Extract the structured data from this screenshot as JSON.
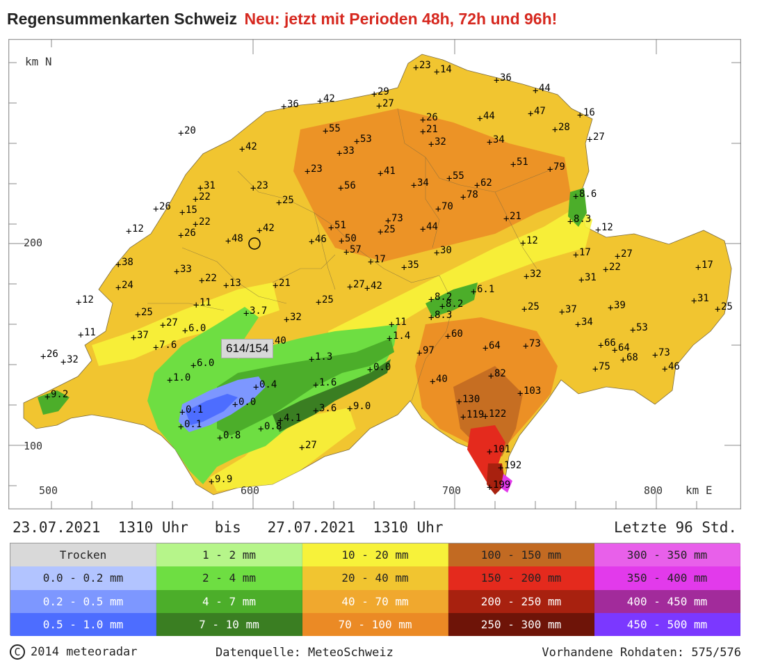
{
  "header": {
    "title": "Regensummenkarten Schweiz",
    "highlight": "Neu: jetzt mit Perioden 48h, 72h und 96h!"
  },
  "map": {
    "axis_y_label": "km N",
    "axis_x_label": "km E",
    "y_ticks": [
      "200",
      "100"
    ],
    "x_ticks": [
      "500",
      "600",
      "700",
      "800"
    ],
    "popup_value": "614/154",
    "stations": [
      {
        "v": "23",
        "x": 600,
        "y": 97
      },
      {
        "v": "14",
        "x": 630,
        "y": 103
      },
      {
        "v": "36",
        "x": 716,
        "y": 115
      },
      {
        "v": "44",
        "x": 772,
        "y": 130
      },
      {
        "v": "42",
        "x": 462,
        "y": 145
      },
      {
        "v": "29",
        "x": 540,
        "y": 135
      },
      {
        "v": "27",
        "x": 547,
        "y": 152
      },
      {
        "v": "36",
        "x": 410,
        "y": 153
      },
      {
        "v": "26",
        "x": 610,
        "y": 172
      },
      {
        "v": "44",
        "x": 692,
        "y": 170
      },
      {
        "v": "47",
        "x": 765,
        "y": 163
      },
      {
        "v": "16",
        "x": 836,
        "y": 165
      },
      {
        "v": "20",
        "x": 262,
        "y": 191
      },
      {
        "v": "55",
        "x": 470,
        "y": 188
      },
      {
        "v": "21",
        "x": 610,
        "y": 189
      },
      {
        "v": "28",
        "x": 800,
        "y": 186
      },
      {
        "v": "53",
        "x": 515,
        "y": 203
      },
      {
        "v": "33",
        "x": 490,
        "y": 220
      },
      {
        "v": "32",
        "x": 622,
        "y": 207
      },
      {
        "v": "34",
        "x": 706,
        "y": 204
      },
      {
        "v": "27",
        "x": 850,
        "y": 200
      },
      {
        "v": "42",
        "x": 350,
        "y": 214
      },
      {
        "v": "51",
        "x": 740,
        "y": 236
      },
      {
        "v": "79",
        "x": 793,
        "y": 243
      },
      {
        "v": "23",
        "x": 444,
        "y": 246
      },
      {
        "v": "41",
        "x": 549,
        "y": 249
      },
      {
        "v": "55",
        "x": 648,
        "y": 256
      },
      {
        "v": "62",
        "x": 688,
        "y": 266
      },
      {
        "v": "31",
        "x": 290,
        "y": 270
      },
      {
        "v": "23",
        "x": 366,
        "y": 270
      },
      {
        "v": "56",
        "x": 492,
        "y": 270
      },
      {
        "v": "34",
        "x": 597,
        "y": 266
      },
      {
        "v": "78",
        "x": 668,
        "y": 283
      },
      {
        "v": "8.6",
        "x": 830,
        "y": 282
      },
      {
        "v": "22",
        "x": 283,
        "y": 286
      },
      {
        "v": "25",
        "x": 403,
        "y": 291
      },
      {
        "v": "26",
        "x": 226,
        "y": 300
      },
      {
        "v": "70",
        "x": 632,
        "y": 300
      },
      {
        "v": "15",
        "x": 264,
        "y": 305
      },
      {
        "v": "22",
        "x": 283,
        "y": 322
      },
      {
        "v": "73",
        "x": 560,
        "y": 317
      },
      {
        "v": "21",
        "x": 730,
        "y": 314
      },
      {
        "v": "8.3",
        "x": 822,
        "y": 318
      },
      {
        "v": "12",
        "x": 187,
        "y": 332
      },
      {
        "v": "26",
        "x": 262,
        "y": 338
      },
      {
        "v": "42",
        "x": 375,
        "y": 331
      },
      {
        "v": "51",
        "x": 478,
        "y": 327
      },
      {
        "v": "25",
        "x": 549,
        "y": 333
      },
      {
        "v": "44",
        "x": 610,
        "y": 329
      },
      {
        "v": "12",
        "x": 862,
        "y": 330
      },
      {
        "v": "48",
        "x": 330,
        "y": 346
      },
      {
        "v": "46",
        "x": 450,
        "y": 347
      },
      {
        "v": "50",
        "x": 493,
        "y": 346
      },
      {
        "v": "12",
        "x": 754,
        "y": 349
      },
      {
        "v": "57",
        "x": 500,
        "y": 362
      },
      {
        "v": "30",
        "x": 630,
        "y": 363
      },
      {
        "v": "17",
        "x": 830,
        "y": 366
      },
      {
        "v": "27",
        "x": 890,
        "y": 368
      },
      {
        "v": "38",
        "x": 172,
        "y": 380
      },
      {
        "v": "17",
        "x": 535,
        "y": 376
      },
      {
        "v": "35",
        "x": 583,
        "y": 384
      },
      {
        "v": "22",
        "x": 873,
        "y": 387
      },
      {
        "v": "17",
        "x": 1006,
        "y": 384
      },
      {
        "v": "33",
        "x": 256,
        "y": 390
      },
      {
        "v": "32",
        "x": 759,
        "y": 397
      },
      {
        "v": "31",
        "x": 838,
        "y": 402
      },
      {
        "v": "24",
        "x": 172,
        "y": 413
      },
      {
        "v": "22",
        "x": 292,
        "y": 403
      },
      {
        "v": "13",
        "x": 327,
        "y": 410
      },
      {
        "v": "21",
        "x": 398,
        "y": 410
      },
      {
        "v": "27",
        "x": 505,
        "y": 412
      },
      {
        "v": "42",
        "x": 530,
        "y": 414
      },
      {
        "v": "6.1",
        "x": 683,
        "y": 419
      },
      {
        "v": "12",
        "x": 115,
        "y": 434
      },
      {
        "v": "25",
        "x": 460,
        "y": 434
      },
      {
        "v": "8.2",
        "x": 622,
        "y": 430
      },
      {
        "v": "8.2",
        "x": 638,
        "y": 440
      },
      {
        "v": "25",
        "x": 756,
        "y": 444
      },
      {
        "v": "37",
        "x": 810,
        "y": 448
      },
      {
        "v": "39",
        "x": 880,
        "y": 442
      },
      {
        "v": "31",
        "x": 1000,
        "y": 432
      },
      {
        "v": "25",
        "x": 1034,
        "y": 444
      },
      {
        "v": "25",
        "x": 200,
        "y": 452
      },
      {
        "v": "11",
        "x": 284,
        "y": 438
      },
      {
        "v": "3.7",
        "x": 356,
        "y": 450
      },
      {
        "v": "8.3",
        "x": 622,
        "y": 456
      },
      {
        "v": "34",
        "x": 833,
        "y": 466
      },
      {
        "v": "27",
        "x": 236,
        "y": 467
      },
      {
        "v": "32",
        "x": 414,
        "y": 459
      },
      {
        "v": "11",
        "x": 565,
        "y": 466
      },
      {
        "v": "53",
        "x": 912,
        "y": 474
      },
      {
        "v": "11",
        "x": 118,
        "y": 481
      },
      {
        "v": "37",
        "x": 194,
        "y": 485
      },
      {
        "v": "6.0",
        "x": 268,
        "y": 475
      },
      {
        "v": "1.4",
        "x": 562,
        "y": 486
      },
      {
        "v": "60",
        "x": 646,
        "y": 483
      },
      {
        "v": "7.6",
        "x": 226,
        "y": 499
      },
      {
        "v": "40",
        "x": 392,
        "y": 493
      },
      {
        "v": "64",
        "x": 700,
        "y": 500
      },
      {
        "v": "73",
        "x": 758,
        "y": 497
      },
      {
        "v": "66",
        "x": 866,
        "y": 496
      },
      {
        "v": "26",
        "x": 64,
        "y": 512
      },
      {
        "v": "97",
        "x": 605,
        "y": 507
      },
      {
        "v": "64",
        "x": 886,
        "y": 503
      },
      {
        "v": "73",
        "x": 944,
        "y": 510
      },
      {
        "v": "32",
        "x": 93,
        "y": 520
      },
      {
        "v": "6.0",
        "x": 280,
        "y": 525
      },
      {
        "v": "1.3",
        "x": 450,
        "y": 516
      },
      {
        "v": "68",
        "x": 898,
        "y": 517
      },
      {
        "v": "0.0",
        "x": 534,
        "y": 531
      },
      {
        "v": "75",
        "x": 858,
        "y": 530
      },
      {
        "v": "46",
        "x": 958,
        "y": 530
      },
      {
        "v": "1.0",
        "x": 246,
        "y": 546
      },
      {
        "v": "40",
        "x": 624,
        "y": 548
      },
      {
        "v": "82",
        "x": 708,
        "y": 540
      },
      {
        "v": "0.4",
        "x": 370,
        "y": 556
      },
      {
        "v": "1.6",
        "x": 456,
        "y": 553
      },
      {
        "v": "103",
        "x": 750,
        "y": 565
      },
      {
        "v": "9.2",
        "x": 70,
        "y": 570
      },
      {
        "v": "0.0",
        "x": 340,
        "y": 581
      },
      {
        "v": "130",
        "x": 662,
        "y": 577
      },
      {
        "v": "0.1",
        "x": 264,
        "y": 592
      },
      {
        "v": "3.6",
        "x": 456,
        "y": 590
      },
      {
        "v": "9.0",
        "x": 505,
        "y": 587
      },
      {
        "v": "122",
        "x": 700,
        "y": 598
      },
      {
        "v": "0.1",
        "x": 262,
        "y": 613
      },
      {
        "v": "4.1",
        "x": 405,
        "y": 604
      },
      {
        "v": "0.8",
        "x": 377,
        "y": 616
      },
      {
        "v": "119",
        "x": 668,
        "y": 599
      },
      {
        "v": "0.8",
        "x": 318,
        "y": 629
      },
      {
        "v": "27",
        "x": 436,
        "y": 643
      },
      {
        "v": "101",
        "x": 706,
        "y": 649
      },
      {
        "v": "192",
        "x": 722,
        "y": 672
      },
      {
        "v": "9.9",
        "x": 306,
        "y": 692
      },
      {
        "v": "199",
        "x": 706,
        "y": 700
      }
    ]
  },
  "period": {
    "text": "23.07.2021  1310 Uhr   bis   27.07.2021  1310 Uhr",
    "last": "Letzte 96 Std."
  },
  "legend": {
    "rows": [
      [
        {
          "label": "Trocken",
          "color": "#d9d9d9",
          "light": false
        },
        {
          "label": "1 - 2 mm",
          "color": "#b6f58a",
          "light": false
        },
        {
          "label": "10 - 20 mm",
          "color": "#f7f23a",
          "light": false
        },
        {
          "label": "100 - 150 mm",
          "color": "#c26a22",
          "light": false
        },
        {
          "label": "300 - 350 mm",
          "color": "#e860ea",
          "light": false
        }
      ],
      [
        {
          "label": "0.0 - 0.2 mm",
          "color": "#b2c4ff",
          "light": false
        },
        {
          "label": "2 - 4 mm",
          "color": "#6ede42",
          "light": false
        },
        {
          "label": "20 - 40 mm",
          "color": "#f1c530",
          "light": false
        },
        {
          "label": "150 - 200 mm",
          "color": "#e42a1d",
          "light": false
        },
        {
          "label": "350 - 400 mm",
          "color": "#e23aeb",
          "light": false
        }
      ],
      [
        {
          "label": "0.2 - 0.5 mm",
          "color": "#7d97ff",
          "light": true
        },
        {
          "label": "4 - 7 mm",
          "color": "#4cae2a",
          "light": true
        },
        {
          "label": "40 - 70 mm",
          "color": "#f0a82e",
          "light": true
        },
        {
          "label": "200 - 250 mm",
          "color": "#a8210f",
          "light": true
        },
        {
          "label": "400 - 450 mm",
          "color": "#a22b9b",
          "light": true
        }
      ],
      [
        {
          "label": "0.5 - 1.0 mm",
          "color": "#4d6dff",
          "light": true
        },
        {
          "label": "7 - 10 mm",
          "color": "#3a7e22",
          "light": true
        },
        {
          "label": "70 - 100 mm",
          "color": "#eb8a25",
          "light": true
        },
        {
          "label": "250 - 300 mm",
          "color": "#6e1408",
          "light": true
        },
        {
          "label": "450 - 500 mm",
          "color": "#7b38ff",
          "light": true
        }
      ]
    ]
  },
  "footer": {
    "copyright_symbol": "C",
    "copyright": "2014  meteoradar",
    "source": "Datenquelle: MeteoSchweiz",
    "raw": "Vorhandene Rohdaten: 575/576"
  },
  "colors": {
    "title_accent": "#d6281f",
    "map_base": "#f1c530",
    "map_frame": "#9a9a9a"
  }
}
